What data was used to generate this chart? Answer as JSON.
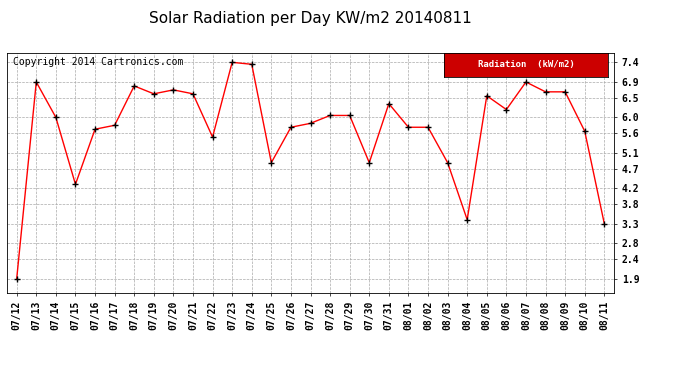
{
  "title": "Solar Radiation per Day KW/m2 20140811",
  "copyright": "Copyright 2014 Cartronics.com",
  "legend_label": "Radiation  (kW/m2)",
  "x_labels": [
    "07/12",
    "07/13",
    "07/14",
    "07/15",
    "07/16",
    "07/17",
    "07/18",
    "07/19",
    "07/20",
    "07/21",
    "07/22",
    "07/23",
    "07/24",
    "07/25",
    "07/26",
    "07/27",
    "07/28",
    "07/29",
    "07/30",
    "07/31",
    "08/01",
    "08/02",
    "08/03",
    "08/04",
    "08/05",
    "08/06",
    "08/07",
    "08/08",
    "08/09",
    "08/10",
    "08/11"
  ],
  "y_values": [
    1.9,
    6.9,
    6.0,
    4.3,
    5.7,
    5.8,
    6.8,
    6.6,
    6.7,
    6.6,
    5.5,
    7.4,
    7.35,
    4.85,
    5.75,
    5.85,
    6.05,
    6.05,
    4.85,
    6.35,
    5.75,
    5.75,
    4.85,
    3.4,
    6.55,
    6.2,
    6.9,
    6.65,
    6.65,
    5.65,
    3.3
  ],
  "line_color": "#ff0000",
  "marker_color": "#000000",
  "bg_color": "#ffffff",
  "plot_bg_color": "#ffffff",
  "grid_color": "#aaaaaa",
  "yticks": [
    1.9,
    2.4,
    2.8,
    3.3,
    3.8,
    4.2,
    4.7,
    5.1,
    5.6,
    6.0,
    6.5,
    6.9,
    7.4
  ],
  "ylim": [
    1.55,
    7.65
  ],
  "legend_bg": "#cc0000",
  "legend_text_color": "#ffffff",
  "title_fontsize": 11,
  "axis_fontsize": 7,
  "copyright_fontsize": 7
}
